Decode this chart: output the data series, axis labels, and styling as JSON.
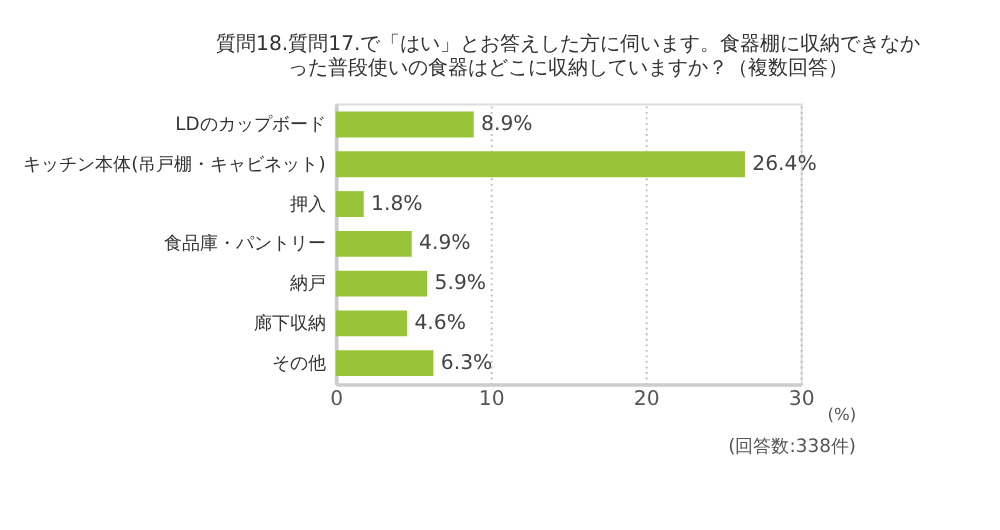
{
  "chart_data": {
    "type": "bar",
    "orientation": "horizontal",
    "title": "質問18.質問17.で「はい」とお答えした方に伺います。食器棚に収納できなかった普段使いの食器はどこに収納していますか？（複数回答）",
    "categories": [
      "LDのカップボード",
      "キッチン本体(吊戸棚・キャビネット)",
      "押入",
      "食品庫・パントリー",
      "納戸",
      "廊下収納",
      "その他"
    ],
    "series": [
      {
        "color": "#99c43a",
        "values": [
          8.9,
          26.4,
          1.8,
          4.9,
          5.9,
          4.6,
          6.3
        ],
        "value_labels": [
          "8.9%",
          "26.4%",
          "1.8%",
          "4.9%",
          "5.9%",
          "4.6%",
          "6.3%"
        ]
      }
    ],
    "xlim": [
      0,
      30
    ],
    "xticks": [
      0,
      10,
      20,
      30
    ],
    "xlabel": "(%)",
    "grid": "x",
    "annotations": [
      "(回答数:338件)"
    ]
  }
}
